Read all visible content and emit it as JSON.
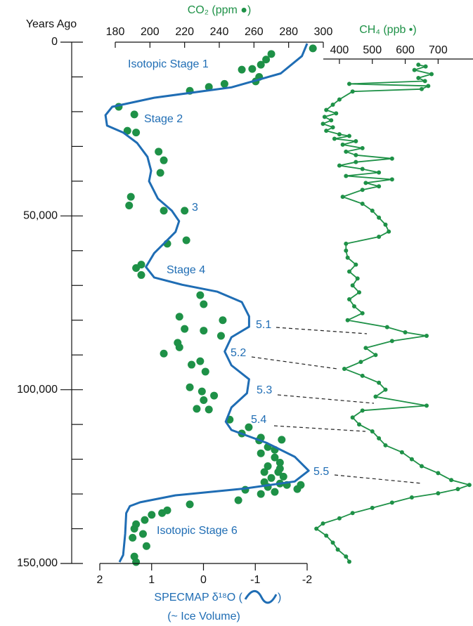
{
  "chart_data": {
    "type": "profile",
    "ylabel": "Years Ago",
    "ylim": [
      0,
      150000
    ],
    "yticks": [
      0,
      {
        "value": 50000,
        "label": "50,000"
      },
      {
        "value": 100000,
        "label": "100,000"
      },
      {
        "value": 150000,
        "label": "150,000"
      }
    ],
    "yminorticks": [
      10000,
      20000,
      30000,
      40000,
      60000,
      70000,
      80000,
      90000,
      110000,
      120000,
      130000,
      140000
    ],
    "series": [
      {
        "name": "CO₂ (ppm ●)",
        "color": "#1e9147",
        "style": "points",
        "xlim": [
          180,
          300
        ],
        "xticks": [
          180,
          200,
          220,
          240,
          260,
          280,
          300
        ],
        "years": [
          1800,
          3400,
          5000,
          6500,
          7700,
          7900,
          10000,
          11300,
          12000,
          12900,
          14000,
          18600,
          20800,
          25500,
          26000,
          31500,
          34000,
          37600,
          44500,
          47000,
          48500,
          48500,
          57000,
          58000,
          64000,
          65000,
          67000,
          72800,
          75400,
          79000,
          80000,
          82500,
          83000,
          84500,
          86500,
          87800,
          89600,
          91800,
          92800,
          94800,
          99300,
          100500,
          101700,
          103000,
          105500,
          105700,
          108600,
          110800,
          112600,
          113800,
          114400,
          114600,
          116500,
          117300,
          118300,
          119500,
          121000,
          122000,
          122700,
          123700,
          123700,
          125000,
          125400,
          126600,
          127000,
          127400,
          127400,
          128000,
          128600,
          128800,
          129400,
          130000,
          131800,
          133000,
          134700,
          135500,
          136000,
          137500,
          138700,
          140000,
          141500,
          142600,
          145000,
          148000,
          149600
        ],
        "values": [
          294,
          270,
          267,
          264,
          259,
          253,
          263,
          261,
          243,
          234,
          223,
          182,
          191,
          187,
          192,
          205,
          208,
          206,
          189,
          188,
          208,
          220,
          221,
          210,
          195,
          192,
          195,
          229,
          231,
          217,
          242,
          220,
          231,
          241,
          216,
          217,
          208,
          229,
          224,
          232,
          223,
          230,
          237,
          231,
          227,
          234,
          246,
          257,
          253,
          264,
          276,
          263,
          268,
          272,
          264,
          272,
          275,
          268,
          275,
          266,
          274,
          277,
          270,
          266,
          275,
          279,
          287,
          268,
          285,
          255,
          272,
          264,
          251,
          223,
          210,
          207,
          201,
          197,
          192,
          191,
          196,
          190,
          198,
          191,
          192
        ]
      },
      {
        "name": "CH₄ (ppb •)",
        "color": "#1e9147",
        "style": "line-points",
        "xlim": [
          351,
          806
        ],
        "xticks": [
          400,
          500,
          600,
          700
        ],
        "years": [
          6500,
          7000,
          8000,
          9200,
          10300,
          11200,
          12000,
          12600,
          13500,
          14200,
          16500,
          18000,
          19500,
          20500,
          21500,
          22500,
          23500,
          24500,
          25500,
          26500,
          27000,
          27800,
          28500,
          29500,
          30500,
          31500,
          32500,
          33500,
          34500,
          35500,
          36500,
          37500,
          38500,
          39500,
          40500,
          41500,
          42500,
          44500,
          46500,
          48500,
          50500,
          52500,
          54500,
          56000,
          58000,
          60000,
          62000,
          64000,
          66000,
          68000,
          70000,
          72000,
          74000,
          76000,
          78000,
          80000,
          82000,
          83500,
          84500,
          86000,
          88000,
          90000,
          92000,
          94000,
          96000,
          98000,
          100000,
          102000,
          104600,
          106000,
          108000,
          110000,
          112000,
          114000,
          116000,
          118000,
          120000,
          122000,
          124000,
          126000,
          127400,
          128600,
          129800,
          131000,
          132500,
          134000,
          135500,
          137000,
          138500,
          140000,
          142000,
          144000,
          146000,
          148000,
          149500
        ],
        "values": [
          640,
          662,
          628,
          680,
          640,
          660,
          430,
          670,
          650,
          440,
          400,
          380,
          360,
          390,
          355,
          375,
          350,
          380,
          360,
          400,
          430,
          385,
          450,
          410,
          470,
          420,
          450,
          560,
          450,
          400,
          470,
          520,
          420,
          560,
          480,
          520,
          470,
          410,
          470,
          500,
          520,
          540,
          550,
          520,
          420,
          420,
          425,
          450,
          430,
          455,
          440,
          460,
          430,
          445,
          470,
          425,
          545,
          600,
          665,
          560,
          480,
          510,
          465,
          415,
          470,
          520,
          540,
          510,
          665,
          470,
          440,
          460,
          500,
          520,
          540,
          590,
          620,
          650,
          700,
          740,
          795,
          760,
          700,
          620,
          560,
          500,
          440,
          400,
          350,
          330,
          360,
          380,
          395,
          420,
          430
        ]
      },
      {
        "name": "SPECMAP δ¹⁸O (",
        "name_end": ")",
        "sublabel": "(~ Ice Volume)",
        "color": "#1f6db4",
        "style": "line",
        "xlim": [
          2,
          -2
        ],
        "xticks": [
          2,
          1,
          0,
          -1,
          -2
        ],
        "years": [
          400,
          4000,
          9000,
          13000,
          16000,
          18600,
          21000,
          24000,
          26000,
          29000,
          33000,
          37000,
          40000,
          45000,
          48500,
          51500,
          54600,
          57600,
          60700,
          64700,
          67700,
          69800,
          71800,
          74800,
          78900,
          81900,
          84900,
          89000,
          93000,
          97000,
          101000,
          105100,
          109200,
          111600,
          115300,
          119300,
          123300,
          126400,
          128400,
          130400,
          132400,
          133500,
          135500,
          141500,
          147600,
          149600
        ],
        "values": [
          -2.0,
          -1.9,
          -1.49,
          -0.54,
          0.95,
          1.76,
          1.89,
          1.86,
          1.55,
          1.28,
          1.08,
          1.01,
          1.05,
          0.88,
          0.61,
          0.47,
          0.54,
          0.74,
          0.95,
          1.11,
          0.95,
          0.41,
          -0.27,
          -0.74,
          -0.88,
          -0.88,
          -0.54,
          -0.41,
          -0.54,
          -0.88,
          -0.84,
          -0.54,
          -0.43,
          -0.54,
          -1.22,
          -1.76,
          -2.03,
          -1.76,
          -0.81,
          0.54,
          1.22,
          1.42,
          1.49,
          1.51,
          1.55,
          1.62
        ]
      }
    ],
    "annotations": [
      "Isotopic Stage 1",
      "Stage 2",
      "3",
      "Stage 4",
      "5.1",
      "5.2",
      "5.3",
      "5.4",
      "5.5",
      "Isotopic Stage 6"
    ]
  }
}
